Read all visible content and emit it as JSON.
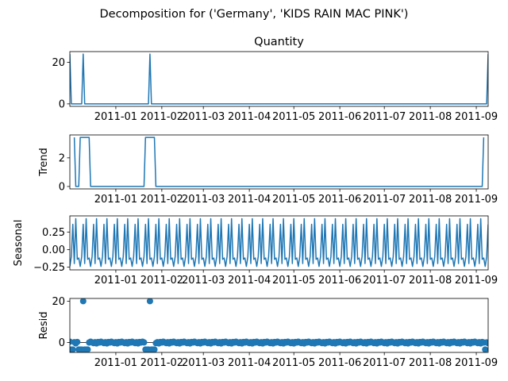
{
  "figure": {
    "suptitle": "Decomposition for ('Germany', 'KIDS RAIN MAC PINK')"
  },
  "chart_data": [
    {
      "type": "line",
      "panel": "observed",
      "title": "Quantity",
      "ylabel": "",
      "ylim": [
        -1.2,
        25.2
      ],
      "yticks": [
        0,
        20
      ],
      "x_start": "2010-12-01",
      "x_end": "2011-09-09",
      "xticks": [
        "2011-01",
        "2011-02",
        "2011-03",
        "2011-04",
        "2011-05",
        "2011-06",
        "2011-07",
        "2011-08",
        "2011-09"
      ],
      "baseline": 0,
      "spikes": [
        {
          "x": "2010-12-01",
          "y": 24
        },
        {
          "x": "2010-12-10",
          "y": 24
        },
        {
          "x": "2011-01-24",
          "y": 24
        },
        {
          "x": "2011-09-09",
          "y": 24
        }
      ]
    },
    {
      "type": "line",
      "panel": "trend",
      "title": "",
      "ylabel": "Trend",
      "ylim": [
        -0.17,
        3.6
      ],
      "yticks": [
        0,
        2
      ],
      "x_start": "2010-12-01",
      "x_end": "2011-09-09",
      "xticks": [
        "2011-01",
        "2011-02",
        "2011-03",
        "2011-04",
        "2011-05",
        "2011-06",
        "2011-07",
        "2011-08",
        "2011-09"
      ],
      "points": [
        {
          "x": "2010-12-04",
          "y": 3.43
        },
        {
          "x": "2010-12-05",
          "y": 0
        },
        {
          "x": "2010-12-07",
          "y": 0
        },
        {
          "x": "2010-12-08",
          "y": 3.43
        },
        {
          "x": "2010-12-14",
          "y": 3.43
        },
        {
          "x": "2010-12-15",
          "y": 0
        },
        {
          "x": "2011-01-20",
          "y": 0
        },
        {
          "x": "2011-01-21",
          "y": 3.43
        },
        {
          "x": "2011-01-27",
          "y": 3.43
        },
        {
          "x": "2011-01-28",
          "y": 0
        },
        {
          "x": "2011-09-05",
          "y": 0
        },
        {
          "x": "2011-09-06",
          "y": 3.43
        }
      ]
    },
    {
      "type": "line",
      "panel": "seasonal",
      "title": "",
      "ylabel": "Seasonal",
      "ylim": [
        -0.29,
        0.48
      ],
      "yticks": [
        -0.25,
        0.0,
        0.25
      ],
      "ytick_labels": [
        "−0.25",
        "0.00",
        "0.25"
      ],
      "x_start": "2010-12-01",
      "x_end": "2011-09-09",
      "xticks": [
        "2011-01",
        "2011-02",
        "2011-03",
        "2011-04",
        "2011-05",
        "2011-06",
        "2011-07",
        "2011-08",
        "2011-09"
      ],
      "period_days": 7,
      "weekly_pattern": [
        -0.24,
        -0.1,
        0.36,
        -0.2,
        0.44,
        -0.14,
        -0.12
      ]
    },
    {
      "type": "scatter",
      "panel": "resid",
      "title": "",
      "ylabel": "Resid",
      "ylim": [
        -4.8,
        21.3
      ],
      "yticks": [
        0,
        20
      ],
      "x_start": "2010-12-01",
      "x_end": "2011-09-09",
      "xticks": [
        "2011-01",
        "2011-02",
        "2011-03",
        "2011-04",
        "2011-05",
        "2011-06",
        "2011-07",
        "2011-08",
        "2011-09"
      ],
      "zero_line": true,
      "spike_points": [
        {
          "x": "2010-12-10",
          "y": 20
        },
        {
          "x": "2011-01-24",
          "y": 20
        }
      ],
      "low_points": [
        {
          "x": "2010-12-02",
          "y": -3.4
        },
        {
          "x": "2010-12-03",
          "y": -3.4
        },
        {
          "x": "2010-12-07",
          "y": -3.4
        },
        {
          "x": "2010-12-08",
          "y": -3.4
        },
        {
          "x": "2010-12-09",
          "y": -3.4
        },
        {
          "x": "2010-12-11",
          "y": -3.4
        },
        {
          "x": "2010-12-12",
          "y": -3.4
        },
        {
          "x": "2010-12-13",
          "y": -3.4
        },
        {
          "x": "2011-01-21",
          "y": -3.4
        },
        {
          "x": "2011-01-22",
          "y": -3.4
        },
        {
          "x": "2011-01-23",
          "y": -3.4
        },
        {
          "x": "2011-01-25",
          "y": -3.4
        },
        {
          "x": "2011-01-26",
          "y": -3.4
        },
        {
          "x": "2011-01-27",
          "y": -3.4
        },
        {
          "x": "2011-09-07",
          "y": -3.4
        }
      ],
      "baseline_pattern": [
        0.4,
        0.05,
        -0.3,
        0.15,
        -0.45,
        0.25,
        0.0
      ]
    }
  ]
}
